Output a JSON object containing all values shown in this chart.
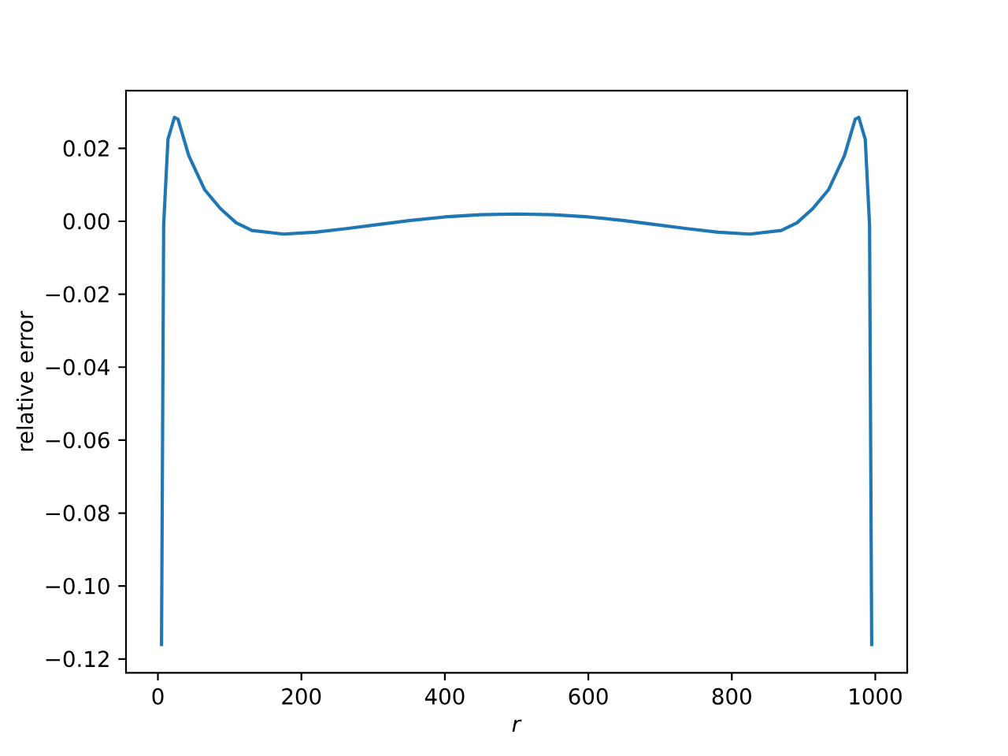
{
  "chart_data": {
    "type": "line",
    "xlabel": "*r*",
    "ylabel": "relative error",
    "x": [
      5,
      8,
      14,
      23,
      28,
      43,
      65,
      87,
      109,
      131,
      175,
      219,
      263,
      307,
      350,
      400,
      450,
      500,
      550,
      600,
      650,
      693,
      737,
      781,
      825,
      869,
      891,
      913,
      935,
      957,
      972,
      977,
      986,
      992,
      995
    ],
    "series": [
      {
        "color": "#1f77b4",
        "values": [
          -0.1165,
          -0.001,
          0.0225,
          0.0285,
          0.028,
          0.018,
          0.0087,
          0.0035,
          -0.0004,
          -0.0025,
          -0.0035,
          -0.003,
          -0.002,
          -0.0009,
          0.0002,
          0.0012,
          0.0018,
          0.002,
          0.0018,
          0.0012,
          0.0002,
          -0.0009,
          -0.002,
          -0.003,
          -0.0035,
          -0.0025,
          -0.0004,
          0.0035,
          0.0087,
          0.018,
          0.028,
          0.0285,
          0.0225,
          -0.001,
          -0.1165
        ]
      }
    ],
    "xlim": [
      -44.5,
      1044.5
    ],
    "ylim": [
      -0.1238,
      0.0358
    ],
    "xticks": [
      0,
      200,
      400,
      600,
      800,
      1000
    ],
    "yticks": [
      {
        "value": -0.12,
        "label": "−0.12"
      },
      {
        "value": -0.1,
        "label": "−0.10"
      },
      {
        "value": -0.08,
        "label": "−0.08"
      },
      {
        "value": -0.06,
        "label": "−0.06"
      },
      {
        "value": -0.04,
        "label": "−0.04"
      },
      {
        "value": -0.02,
        "label": "−0.02"
      },
      {
        "value": 0,
        "label": "0.00"
      },
      {
        "value": 0.02,
        "label": "0.02"
      }
    ],
    "grid": false,
    "marker": "none",
    "line_style": "solid"
  }
}
